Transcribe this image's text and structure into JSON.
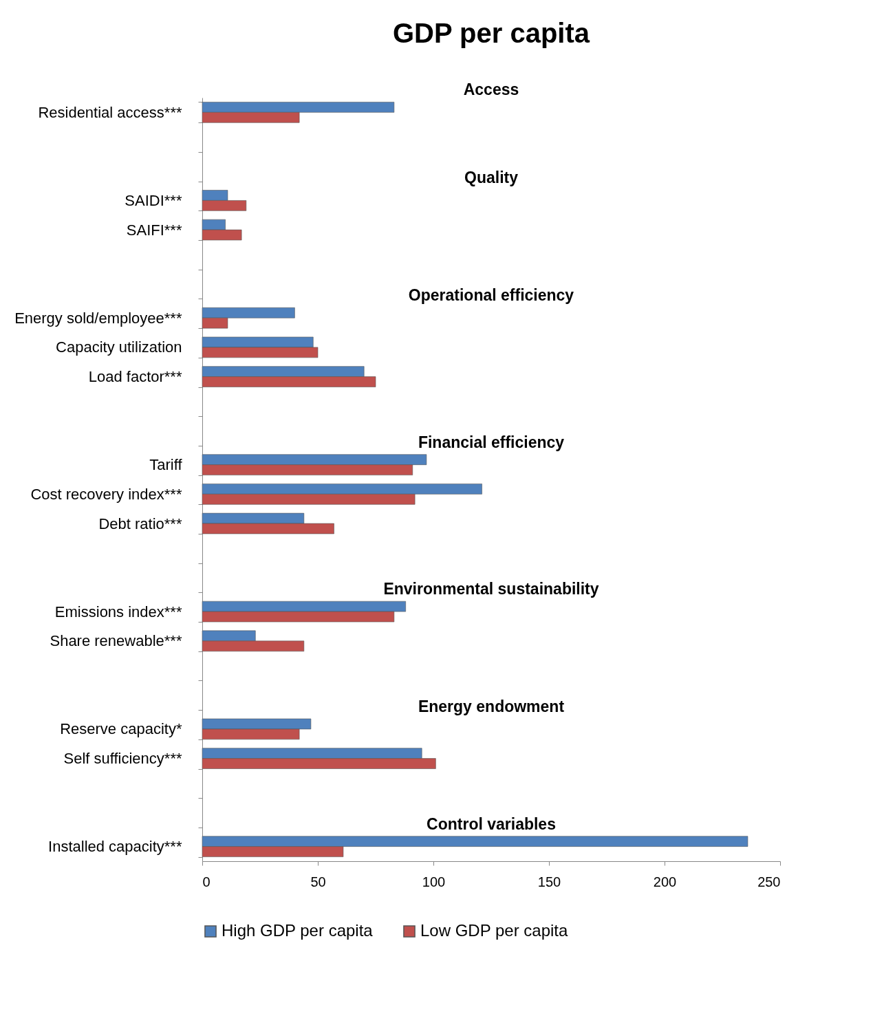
{
  "chart_data": {
    "type": "bar",
    "orientation": "horizontal",
    "title": "GDP per capita",
    "categories": [
      "Residential access***",
      null,
      null,
      "SAIDI***",
      "SAIFI***",
      null,
      null,
      "Energy sold/employee***",
      "Capacity utilization",
      "Load factor***",
      null,
      null,
      "Tariff",
      "Cost recovery index***",
      "Debt ratio***",
      null,
      null,
      "Emissions index***",
      "Share renewable***",
      null,
      null,
      "Reserve capacity*",
      "Self sufficiency***",
      null,
      null,
      "Installed capacity***"
    ],
    "series": [
      {
        "name": "High GDP per capita",
        "color": "#4f81bd",
        "values": [
          83,
          null,
          null,
          11,
          10,
          null,
          null,
          40,
          48,
          70,
          null,
          null,
          97,
          121,
          44,
          null,
          null,
          88,
          23,
          null,
          null,
          47,
          95,
          null,
          null,
          236
        ]
      },
      {
        "name": "Low GDP per capita",
        "color": "#c0504d",
        "values": [
          42,
          null,
          null,
          19,
          17,
          null,
          null,
          11,
          50,
          75,
          null,
          null,
          91,
          92,
          57,
          null,
          null,
          83,
          44,
          null,
          null,
          42,
          101,
          null,
          null,
          61
        ]
      }
    ],
    "annotations": [
      "Access",
      "Quality",
      "Operational efficiency",
      "Financial efficiency",
      "Environmental sustainability",
      "Energy endowment",
      "Control variables"
    ],
    "xlim": [
      0,
      250
    ],
    "xticks": [
      0,
      50,
      100,
      150,
      200,
      250
    ],
    "grid": false,
    "legend": "bottom"
  }
}
